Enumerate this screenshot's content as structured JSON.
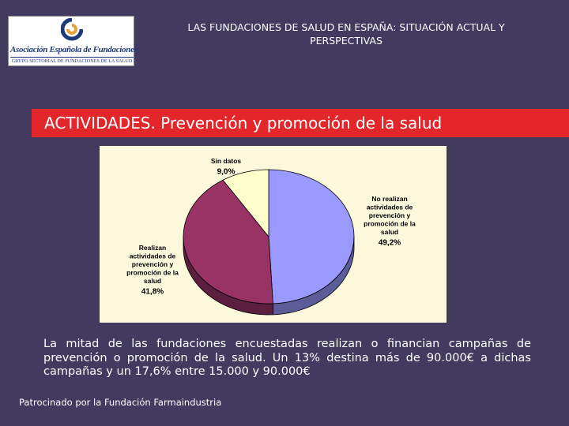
{
  "logo": {
    "title": "Asociación Española de Fundaciones",
    "subtitle": "GRUPO SECTORIAL DE FUNDACIONES DE LA SALUD"
  },
  "header": {
    "title": "LAS FUNDACIONES DE SALUD EN ESPAÑA: SITUACIÓN ACTUAL Y PERSPECTIVAS"
  },
  "banner": {
    "title": "ACTIVIDADES. Prevención y promoción de la salud"
  },
  "chart_data": {
    "type": "pie",
    "title": "",
    "three_d": true,
    "legend": "none",
    "slices": [
      {
        "label": "No realizan actividades de prevención y promoción de la salud",
        "label_lines": [
          "No realizan",
          "actividades de",
          "prevención y",
          "promoción de la",
          "salud"
        ],
        "value": 49.2,
        "value_label": "49,2%",
        "color": "#9999ff"
      },
      {
        "label": "Realizan actividades de prevención y promoción de la salud",
        "label_lines": [
          "Realizan",
          "actividades de",
          "prevención y",
          "promoción de la",
          "salud"
        ],
        "value": 41.8,
        "value_label": "41,8%",
        "color": "#993366"
      },
      {
        "label": "Sin datos",
        "label_lines": [
          "Sin datos"
        ],
        "value": 9.0,
        "value_label": "9,0%",
        "color": "#ffffcc"
      }
    ]
  },
  "body": {
    "text": "La mitad de las fundaciones encuestadas realizan o financian campañas de prevención o promoción de la salud. Un 13% destina más de 90.000€ a dichas campañas y un 17,6% entre 15.000 y 90.000€"
  },
  "footer": {
    "text": "Patrocinado por la Fundación Farmaindustria"
  },
  "colors": {
    "background": "#433a60",
    "banner": "#e3262a",
    "chart_background": "#fbf8dc",
    "logo_blue": "#1f3a7a",
    "logo_orange": "#e8a13a"
  }
}
